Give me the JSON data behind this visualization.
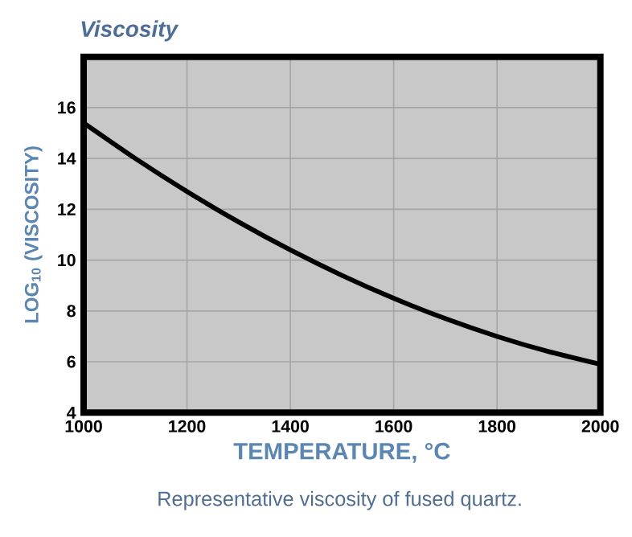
{
  "chart_data": {
    "type": "line",
    "title": "Viscosity",
    "xlabel": "TEMPERATURE, °C",
    "ylabel": "LOG$_{10}$ (VISCOSITY)",
    "annotations": [
      "Representative viscosity of fused quartz."
    ],
    "x": [
      1000,
      1100,
      1200,
      1300,
      1400,
      1500,
      1600,
      1700,
      1800,
      1900,
      2000
    ],
    "series": [
      {
        "color": "#000000",
        "values": [
          15.4,
          14.0,
          12.7,
          11.5,
          10.4,
          9.4,
          8.5,
          7.7,
          7.0,
          6.4,
          5.9
        ]
      }
    ],
    "xlim": [
      1000,
      2000
    ],
    "xticks": [
      1000,
      1200,
      1400,
      1600,
      1800,
      2000
    ],
    "ylim": [
      4,
      18
    ],
    "yticks": [
      4,
      6,
      8,
      10,
      12,
      14,
      16
    ],
    "grid": true,
    "marker": "none",
    "line_style": "solid"
  }
}
